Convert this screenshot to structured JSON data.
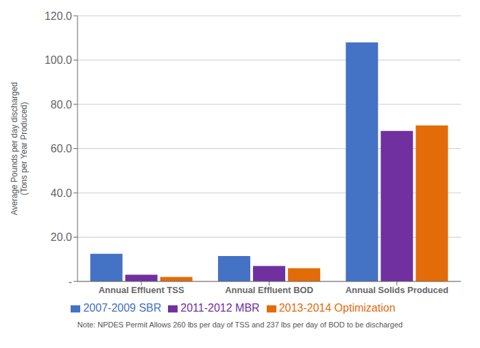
{
  "chart_data": {
    "type": "bar",
    "categories": [
      "Annual Effluent TSS",
      "Annual Effluent BOD",
      "Annual Solids Produced"
    ],
    "series": [
      {
        "name": "2007-2009 SBR",
        "color": "#4472C4",
        "values": [
          12.5,
          11.5,
          108.0
        ]
      },
      {
        "name": "2011-2012 MBR",
        "color": "#7030A0",
        "values": [
          3.0,
          7.0,
          68.0
        ]
      },
      {
        "name": "2013-2014 Optimization",
        "color": "#E36C09",
        "values": [
          2.0,
          6.0,
          70.5
        ]
      }
    ],
    "ylabel": "Average Pounds per day discharged\n(Tons per Year Produced)",
    "ylim": [
      0,
      120.0
    ],
    "yticks": [
      {
        "value": 0,
        "label": "-"
      },
      {
        "value": 20.0,
        "label": "20.0"
      },
      {
        "value": 40.0,
        "label": "40.0"
      },
      {
        "value": 60.0,
        "label": "60.0"
      },
      {
        "value": 80.0,
        "label": "80.0"
      },
      {
        "value": 100.0,
        "label": "100.0"
      },
      {
        "value": 120.0,
        "label": "120.0"
      }
    ],
    "annotations": [
      "Note: NPDES Permit Allows 260 lbs per day of TSS and 237 lbs per day of BOD to be discharged"
    ],
    "grid": true,
    "legend": "bottom"
  }
}
